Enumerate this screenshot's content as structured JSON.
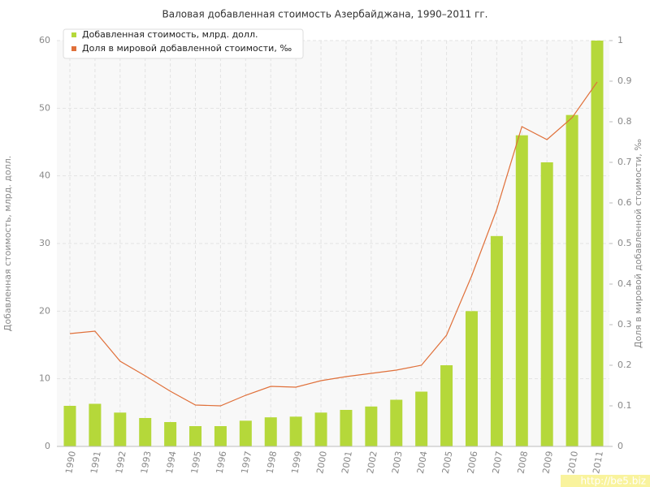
{
  "chart_data": {
    "type": "bar-line",
    "title": "Валовая добавленная стоимость Азербайджана, 1990–2011 гг.",
    "y_label": "Добавленная стоимость, млрд. долл.",
    "y2_label": "Доля в мировой добавленной стоимости, ‰",
    "categories": [
      "1990",
      "1991",
      "1992",
      "1993",
      "1994",
      "1995",
      "1996",
      "1997",
      "1998",
      "1999",
      "2000",
      "2001",
      "2002",
      "2003",
      "2004",
      "2005",
      "2006",
      "2007",
      "2008",
      "2009",
      "2010",
      "2011"
    ],
    "series": [
      {
        "name": "Добавленная стоимость, млрд. долл.",
        "color": "#b5d83a",
        "kind": "bar",
        "values": [
          6.0,
          6.3,
          5.0,
          4.2,
          3.6,
          3.0,
          3.0,
          3.8,
          4.3,
          4.4,
          5.0,
          5.4,
          5.9,
          6.9,
          8.1,
          12.0,
          20.0,
          31.1,
          46.0,
          42.0,
          49.0,
          60.0
        ]
      },
      {
        "name": "Доля в мировой добавленной стоимости, ‰",
        "color": "#e0703a",
        "kind": "line",
        "axis": "y2",
        "values": [
          0.278,
          0.284,
          0.21,
          0.174,
          0.136,
          0.102,
          0.1,
          0.126,
          0.148,
          0.146,
          0.162,
          0.172,
          0.18,
          0.188,
          0.2,
          0.274,
          0.42,
          0.584,
          0.788,
          0.756,
          0.81,
          0.898
        ]
      }
    ],
    "ylim": [
      0,
      60
    ],
    "yticks": [
      0,
      10,
      20,
      30,
      40,
      50,
      60
    ],
    "y2lim": [
      0,
      1
    ],
    "y2ticks": [
      0,
      0.1,
      0.2,
      0.3,
      0.4,
      0.5,
      0.6,
      0.7,
      0.8,
      0.9,
      1
    ],
    "grid": true,
    "watermark": "http://be5.biz"
  }
}
